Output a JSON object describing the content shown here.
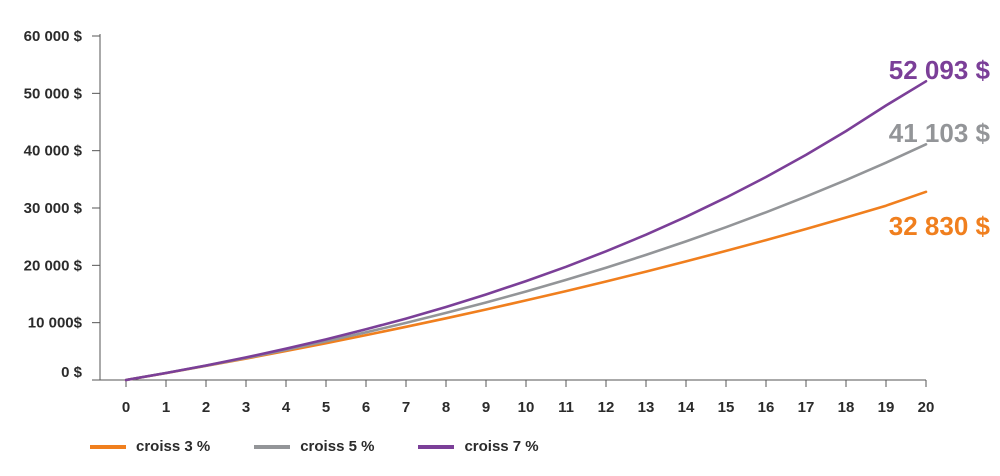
{
  "chart_data": {
    "type": "line",
    "title": "",
    "xlabel": "",
    "ylabel": "",
    "x": [
      0,
      1,
      2,
      3,
      4,
      5,
      6,
      7,
      8,
      9,
      10,
      11,
      12,
      13,
      14,
      15,
      16,
      17,
      18,
      19,
      20
    ],
    "xlim": [
      0,
      20
    ],
    "ylim": [
      0,
      60000
    ],
    "y_ticks": [
      {
        "value": 0,
        "label": "0 $"
      },
      {
        "value": 10000,
        "label": "10 000$"
      },
      {
        "value": 20000,
        "label": "20 000 $"
      },
      {
        "value": 30000,
        "label": "30 000 $"
      },
      {
        "value": 40000,
        "label": "40 000 $"
      },
      {
        "value": 50000,
        "label": "50 000 $"
      },
      {
        "value": 60000,
        "label": "60 000 $"
      }
    ],
    "x_tick_labels": [
      "0",
      "1",
      "2",
      "3",
      "4",
      "5",
      "6",
      "7",
      "8",
      "9",
      "10",
      "11",
      "12",
      "13",
      "14",
      "15",
      "16",
      "17",
      "18",
      "19",
      "20"
    ],
    "grid": false,
    "legend_position": "bottom-left",
    "series": [
      {
        "name": "croiss 3 %",
        "color": "#f07f1e",
        "end_label": "32 830 $",
        "values": [
          0,
          1210,
          2457,
          3741,
          5064,
          6426,
          7830,
          9276,
          10765,
          12298,
          13878,
          15505,
          17181,
          18907,
          20685,
          22516,
          24402,
          26345,
          28345,
          30406,
          32830
        ]
      },
      {
        "name": "croiss 5 %",
        "color": "#939598",
        "end_label": "41 103 $",
        "values": [
          0,
          1216,
          2495,
          3841,
          5257,
          6746,
          8313,
          9962,
          11696,
          13521,
          15440,
          17459,
          19584,
          21819,
          24171,
          26645,
          29248,
          31987,
          34869,
          37901,
          41103
        ]
      },
      {
        "name": "croiss 7 %",
        "color": "#7b3f98",
        "end_label": "52 093 $",
        "values": [
          0,
          1222,
          2533,
          3943,
          5458,
          7086,
          8836,
          10716,
          12737,
          14909,
          17243,
          19752,
          22448,
          25345,
          28459,
          31806,
          35402,
          39267,
          43421,
          47886,
          52093
        ]
      }
    ]
  }
}
